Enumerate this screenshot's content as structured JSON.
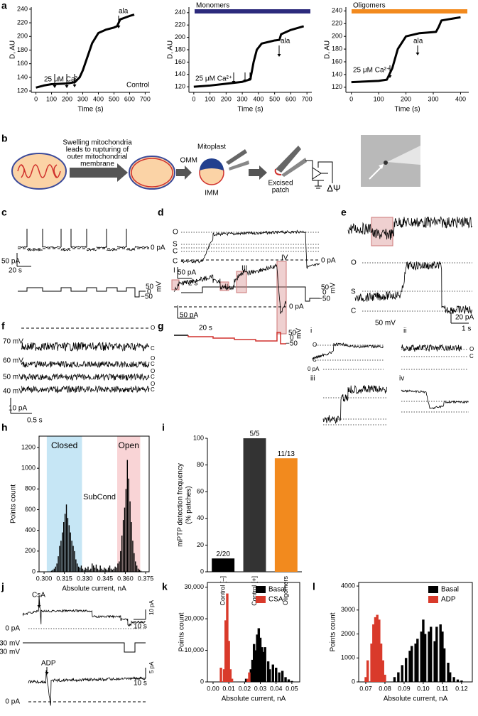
{
  "panels": [
    "a",
    "b",
    "c",
    "d",
    "e",
    "f",
    "g",
    "h",
    "i",
    "j",
    "k",
    "l"
  ],
  "diagram": {
    "steps": [
      "Swelling mitochondria",
      "leads to rupturing of",
      "outer mitochondrial",
      "membrane"
    ],
    "labels": [
      "Mitoplast",
      "OMM",
      "IMM",
      "Excised",
      "patch",
      "ΔΨ"
    ]
  },
  "traces": {
    "c": [
      "0 pA",
      "50 pA",
      "20 s",
      "50",
      "0",
      "−50",
      "mV"
    ],
    "d": [
      "O",
      "S",
      "C",
      "C",
      "0 pA",
      "50 pA",
      "2 s",
      "50",
      "0",
      "−50",
      "mV"
    ],
    "e": [
      "O",
      "S",
      "C",
      "50 mV",
      "20 pA",
      "1 s"
    ],
    "f": [
      "70 mV",
      "60 mV",
      "50 mV",
      "40 mV",
      "O",
      "C",
      "O",
      "C",
      "O",
      "C",
      "O",
      "C",
      "10 pA",
      "0.5 s"
    ],
    "g": [
      "I",
      "II",
      "III",
      "IV",
      "0 pA",
      "50 pA",
      "20 s",
      "50",
      "0",
      "−50",
      "mV",
      "i",
      "ii",
      "iii",
      "iv",
      "O",
      "C",
      "0 pA",
      "O",
      "C"
    ],
    "j": [
      "CsA",
      "0 pA",
      "30 mV",
      "−30 mV",
      "10 s",
      "10 pA",
      "ADP",
      "0 pA",
      "10 s",
      "5 pA"
    ]
  },
  "chart_data": [
    {
      "type": "line",
      "frame": "axes",
      "xlabel": "Time (s)",
      "ylabel": "D, AU",
      "color": "#000000",
      "x": [
        0,
        50,
        100,
        200,
        250,
        280,
        300,
        330,
        360,
        400,
        450,
        500,
        520,
        530,
        540,
        600,
        630
      ],
      "values": [
        125,
        128,
        130,
        131,
        133,
        140,
        150,
        170,
        190,
        205,
        210,
        213,
        215,
        220,
        225,
        230,
        232
      ],
      "xlim": [
        -30,
        730
      ],
      "xticks": [
        0,
        100,
        200,
        300,
        400,
        500,
        600,
        700
      ],
      "ylim": [
        118,
        243
      ],
      "yticks": [
        120,
        140,
        160,
        180,
        200,
        220,
        240
      ],
      "annotations": [
        "25 μM Ca²⁺",
        "ala",
        "Control"
      ]
    },
    {
      "type": "line",
      "frame": "axes",
      "xlabel": "Time (s)",
      "ylabel": "D, AU",
      "color": "#000000",
      "x": [
        0,
        100,
        200,
        300,
        350,
        370,
        390,
        420,
        500,
        530,
        540,
        600,
        680
      ],
      "values": [
        120,
        122,
        125,
        128,
        132,
        160,
        180,
        190,
        195,
        196,
        205,
        212,
        218
      ],
      "xlim": [
        -30,
        730
      ],
      "xticks": [
        0,
        100,
        200,
        300,
        400,
        500,
        600,
        700
      ],
      "ylim": [
        111,
        249
      ],
      "yticks": [
        120,
        140,
        160,
        180,
        200,
        220,
        240
      ],
      "annotations": [
        "25 μM Ca²⁺",
        "ala"
      ],
      "bar_label": "Monomers",
      "bar_color": "#2c2a7c"
    },
    {
      "type": "line",
      "frame": "axes",
      "xlabel": "Time (s)",
      "ylabel": "D, AU",
      "color": "#000000",
      "x": [
        0,
        100,
        130,
        150,
        170,
        200,
        250,
        310,
        320,
        330,
        400
      ],
      "values": [
        128,
        130,
        132,
        150,
        180,
        200,
        205,
        207,
        215,
        225,
        230
      ],
      "xlim": [
        -20,
        430
      ],
      "xticks": [
        0,
        100,
        200,
        300,
        400
      ],
      "ylim": [
        112,
        246
      ],
      "yticks": [
        120,
        140,
        160,
        180,
        200,
        220,
        240
      ],
      "annotations": [
        "25 μM Ca²⁺",
        "ala"
      ],
      "bar_label": "Oligomers",
      "bar_color": "#f28a1e"
    },
    {
      "type": "histogram",
      "frame": "box",
      "xlabel": "Absolute current, nA",
      "ylabel": "Points count",
      "color": "#000000",
      "bins": [
        0.305,
        0.306,
        0.307,
        0.308,
        0.309,
        0.31,
        0.311,
        0.312,
        0.313,
        0.314,
        0.315,
        0.316,
        0.317,
        0.318,
        0.319,
        0.32,
        0.321,
        0.322,
        0.323,
        0.324,
        0.325,
        0.326,
        0.327,
        0.328,
        0.329,
        0.33,
        0.331,
        0.332,
        0.333,
        0.334,
        0.335,
        0.336,
        0.337,
        0.338,
        0.339,
        0.34,
        0.341,
        0.342,
        0.343,
        0.344,
        0.345,
        0.346,
        0.347,
        0.348,
        0.349,
        0.35,
        0.351,
        0.352,
        0.353,
        0.354,
        0.355,
        0.356,
        0.357,
        0.358,
        0.359,
        0.36,
        0.361,
        0.362,
        0.363,
        0.364,
        0.365,
        0.366,
        0.367,
        0.368,
        0.369,
        0.37,
        0.371,
        0.372
      ],
      "values": [
        10,
        20,
        30,
        50,
        80,
        150,
        250,
        300,
        380,
        480,
        560,
        650,
        520,
        450,
        380,
        300,
        250,
        200,
        120,
        80,
        50,
        40,
        60,
        30,
        20,
        40,
        30,
        50,
        20,
        30,
        80,
        60,
        40,
        70,
        30,
        20,
        60,
        30,
        20,
        40,
        30,
        20,
        40,
        60,
        30,
        20,
        30,
        50,
        40,
        80,
        100,
        200,
        350,
        500,
        620,
        800,
        1080,
        900,
        680,
        480,
        300,
        180,
        100,
        60,
        30,
        20,
        10
      ],
      "regions": [
        {
          "label": "Closed",
          "from": 0.302,
          "to": 0.328,
          "color": "#c6e6f5"
        },
        {
          "label": "Open",
          "from": 0.354,
          "to": 0.371,
          "color": "#f9d4d6"
        }
      ],
      "annotations": [
        "SubCond"
      ],
      "xlim": [
        0.2963,
        0.3776
      ],
      "xticks": [
        {
          "value": 0.3,
          "label": "0.300"
        },
        0.315,
        {
          "value": 0.33,
          "label": "0.330"
        },
        0.345,
        {
          "value": 0.36,
          "label": "0.360"
        },
        0.375
      ],
      "ylim": [
        0,
        1310
      ],
      "yticks": [
        0,
        200,
        400,
        600,
        800,
        1000,
        1200
      ]
    },
    {
      "type": "bar",
      "frame": "axes",
      "ylabel": [
        "mPTP detection frequency",
        "(% patches)"
      ],
      "categories": [
        "Control [–]",
        "Control [+]",
        "Oligomers"
      ],
      "values": [
        10,
        100,
        85
      ],
      "bar_labels": [
        "2/20",
        "5/5",
        "11/13"
      ],
      "colors": [
        "#000000",
        "#333333",
        "#f28a1e"
      ],
      "ylim": [
        0,
        100
      ],
      "yticks": [
        0,
        20,
        40,
        60,
        80,
        100
      ]
    },
    {
      "type": "bar",
      "frame": "box",
      "xlabel": "Absolute current, nA",
      "ylabel": "Points count",
      "legend": "upper right",
      "series": [
        {
          "name": "Basal",
          "color": "#000000",
          "x": [
            0.021,
            0.024,
            0.025,
            0.026,
            0.027,
            0.028,
            0.029,
            0.03,
            0.031,
            0.032,
            0.033,
            0.035,
            0.036,
            0.038,
            0.04,
            0.042,
            0.044,
            0.046,
            0.048,
            0.05
          ],
          "values": [
            1000,
            4000,
            7000,
            12000,
            10000,
            15000,
            17000,
            14000,
            11000,
            9500,
            11000,
            6500,
            4000,
            5500,
            4500,
            3000,
            3500,
            1500,
            800,
            300
          ]
        },
        {
          "name": "CSA",
          "color": "#d93a2b",
          "x": [
            0.005,
            0.007,
            0.008,
            0.009,
            0.01,
            0.011,
            0.012,
            0.022,
            0.023
          ],
          "values": [
            4500,
            4000,
            19500,
            28000,
            13000,
            4000,
            1000,
            1000,
            3000
          ]
        }
      ],
      "xlim": [
        -0.0036,
        0.055
      ],
      "xticks": [
        {
          "value": 0,
          "label": "0.00"
        },
        0.01,
        0.02,
        0.03,
        0.04,
        0.05
      ],
      "ylim": [
        0,
        31500
      ],
      "yticks": [
        0,
        {
          "value": 10000,
          "label": "10,000"
        },
        {
          "value": 20000,
          "label": "20,000"
        },
        {
          "value": 30000,
          "label": "30,000"
        }
      ]
    },
    {
      "type": "bar",
      "frame": "box",
      "xlabel": "Absolute current, nA",
      "ylabel": "Points count",
      "legend": "upper right",
      "series": [
        {
          "name": "Basal",
          "color": "#000000",
          "x": [
            0.085,
            0.087,
            0.089,
            0.091,
            0.093,
            0.094,
            0.096,
            0.097,
            0.099,
            0.1,
            0.101,
            0.103,
            0.104,
            0.106,
            0.107,
            0.109,
            0.11,
            0.111,
            0.113,
            0.114,
            0.116,
            0.118,
            0.12
          ],
          "values": [
            200,
            400,
            700,
            1000,
            1300,
            1500,
            1600,
            1800,
            2100,
            2600,
            2000,
            2100,
            2300,
            1700,
            2300,
            2400,
            2100,
            1400,
            800,
            400,
            200,
            100,
            60
          ]
        },
        {
          "name": "ADP",
          "color": "#d93a2b",
          "x": [
            0.07,
            0.071,
            0.073,
            0.074,
            0.075,
            0.076,
            0.077,
            0.078,
            0.079,
            0.08
          ],
          "values": [
            200,
            900,
            1600,
            2400,
            2700,
            2800,
            2600,
            1600,
            900,
            300
          ]
        }
      ],
      "xlim": [
        0.0663,
        0.1256
      ],
      "xticks": [
        0.07,
        0.08,
        0.09,
        {
          "value": 0.1,
          "label": "0.10"
        },
        0.11,
        0.12
      ],
      "ylim": [
        0,
        4150
      ],
      "yticks": [
        0,
        1000,
        2000,
        3000,
        4000
      ]
    }
  ]
}
